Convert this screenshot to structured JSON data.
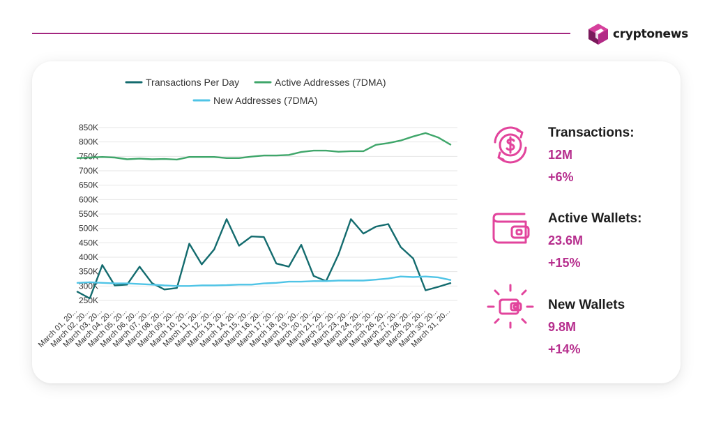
{
  "brand": {
    "name": "cryptonews"
  },
  "colors": {
    "accent": "#a3267f",
    "stat_text": "#b62e8d",
    "icon": "#e2449c",
    "transactions": "#136b6e",
    "active": "#3fa66a",
    "new": "#4fc4e6"
  },
  "chart_data": {
    "type": "line",
    "x": [
      "March 01, 20...",
      "March 02, 20...",
      "March 03, 20...",
      "March 04, 20...",
      "March 05, 20...",
      "March 06, 20...",
      "March 07, 20...",
      "March 08, 20...",
      "March 09, 20...",
      "March 10, 20...",
      "March 11, 20...",
      "March 12, 20...",
      "March 13, 20...",
      "March 14, 20...",
      "March 15, 20...",
      "March 16, 20...",
      "March 17, 20...",
      "March 18, 20...",
      "March 19, 20...",
      "March 20, 20...",
      "March 21, 20...",
      "March 22, 20...",
      "March 23, 20...",
      "March 24, 20...",
      "March 25, 20...",
      "March 26, 20...",
      "March 27, 20...",
      "March 28, 20...",
      "March 29, 20...",
      "March 30, 20...",
      "March 31, 20..."
    ],
    "series": [
      {
        "name": "Transactions Per Day",
        "values": [
          280000,
          257000,
          373000,
          302000,
          305000,
          367000,
          310000,
          288000,
          293000,
          447000,
          375000,
          427000,
          532000,
          440000,
          472000,
          470000,
          378000,
          367000,
          443000,
          335000,
          317000,
          410000,
          532000,
          482000,
          506000,
          515000,
          435000,
          396000,
          285000,
          297000,
          310000
        ]
      },
      {
        "name": "Active Addresses (7DMA)",
        "values": [
          744000,
          746000,
          748000,
          746000,
          740000,
          742000,
          740000,
          741000,
          739000,
          748000,
          748000,
          748000,
          744000,
          744000,
          749000,
          753000,
          753000,
          755000,
          765000,
          770000,
          770000,
          766000,
          768000,
          768000,
          790000,
          796000,
          805000,
          819000,
          831000,
          816000,
          791000
        ]
      },
      {
        "name": "New Addresses (7DMA)",
        "values": [
          311000,
          313000,
          311000,
          309000,
          309000,
          307000,
          305000,
          302000,
          300000,
          300000,
          302000,
          302000,
          303000,
          305000,
          305000,
          309000,
          311000,
          315000,
          315000,
          317000,
          317000,
          319000,
          319000,
          319000,
          322000,
          326000,
          333000,
          331000,
          333000,
          330000,
          321000
        ]
      }
    ],
    "y_ticks": [
      "850K",
      "800K",
      "750K",
      "700K",
      "650K",
      "600K",
      "550K",
      "500K",
      "450K",
      "400K",
      "350K",
      "300K",
      "250K"
    ],
    "ylim": [
      250000,
      850000
    ],
    "grid": true,
    "legend_position": "top"
  },
  "stats": [
    {
      "title": "Transactions:",
      "value": "12M",
      "change": "+6%",
      "icon": "dollar-cycle-icon"
    },
    {
      "title": "Active Wallets:",
      "value": "23.6M",
      "change": "+15%",
      "icon": "wallet-icon"
    },
    {
      "title": "New Wallets",
      "value": "9.8M",
      "change": "+14%",
      "icon": "new-wallet-icon"
    }
  ]
}
